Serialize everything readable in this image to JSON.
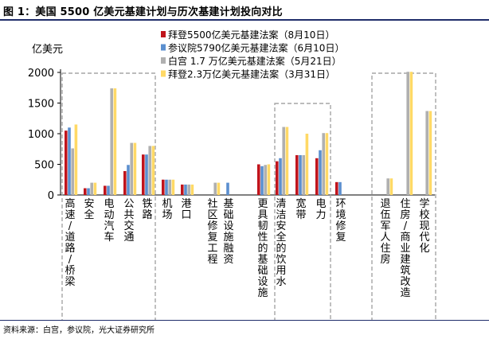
{
  "title": "图 1：美国 5500 亿美元基建计划与历次基建计划投向对比",
  "source": "资料来源：白宫，参议院，光大证券研究所",
  "chart_data": {
    "type": "bar",
    "title": "美国 5500 亿美元基建计划与历次基建计划投向对比",
    "ylabel": "亿美元",
    "xlabel": "",
    "ylim": [
      0,
      2000
    ],
    "yticks": [
      0,
      500,
      1000,
      1500,
      2000
    ],
    "legend_position": "top-right",
    "gridlines": false,
    "categories": [
      "高速/道路/桥梁",
      "安全",
      "电动汽车",
      "公共交通",
      "铁路",
      "机场",
      "港口",
      "社区修复工程",
      "基础设施融资",
      "更具韧性的基础设施",
      "清洁安全的饮用水",
      "宽带",
      "电力",
      "环境修复",
      "退伍军人住房",
      "住房/商业建筑改造",
      "学校现代化"
    ],
    "series": [
      {
        "name": "拜登5500亿美元基建法案（8月10日）",
        "color": "#c0141c",
        "values": [
          1050,
          110,
          150,
          390,
          660,
          250,
          170,
          0,
          0,
          500,
          550,
          650,
          600,
          210,
          0,
          0,
          0
        ]
      },
      {
        "name": "参议院5790亿美元基建法案（6月10日）",
        "color": "#5b8fcf",
        "values": [
          1100,
          110,
          150,
          490,
          660,
          250,
          170,
          0,
          200,
          470,
          600,
          650,
          730,
          210,
          0,
          0,
          0
        ]
      },
      {
        "name": "白宫 1.7 万亿美元基建法案（5月21日）",
        "color": "#b0b0b0",
        "values": [
          760,
          200,
          1740,
          850,
          800,
          250,
          170,
          200,
          0,
          490,
          1110,
          650,
          1010,
          0,
          270,
          2010,
          1370
        ]
      },
      {
        "name": "拜登2.3万亿美元基建法案（3月31日）",
        "color": "#ffd966",
        "values": [
          1150,
          200,
          1740,
          850,
          800,
          250,
          170,
          200,
          0,
          500,
          1110,
          1000,
          1010,
          0,
          270,
          2010,
          1370
        ]
      }
    ],
    "groups": [
      {
        "name": "transport",
        "from": 0,
        "to": 4
      },
      {
        "name": "water-energy",
        "from": 10,
        "to": 12
      },
      {
        "name": "housing-schools",
        "from": 14,
        "to": 16
      }
    ]
  }
}
